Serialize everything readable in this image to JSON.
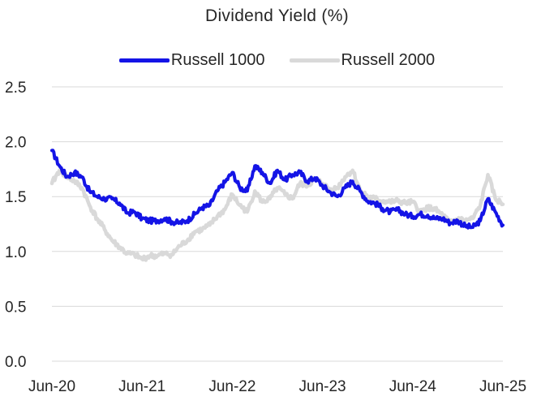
{
  "chart_data": {
    "type": "line",
    "title": "Dividend Yield (%)",
    "xlabel": "",
    "ylabel": "",
    "ylim": [
      0,
      2.5
    ],
    "yticks": [
      "0.0",
      "0.5",
      "1.0",
      "1.5",
      "2.0",
      "2.5"
    ],
    "xticks": [
      "Jun-20",
      "Jun-21",
      "Jun-22",
      "Jun-23",
      "Jun-24",
      "Jun-25"
    ],
    "grid": "horizontal",
    "legend": "top-center",
    "series": [
      {
        "name": "Russell 1000",
        "color": "#1414e6",
        "points": [
          [
            "2020-06",
            1.92
          ],
          [
            "2020-07",
            1.78
          ],
          [
            "2020-08",
            1.68
          ],
          [
            "2020-09",
            1.72
          ],
          [
            "2020-10",
            1.68
          ],
          [
            "2020-11",
            1.55
          ],
          [
            "2020-12",
            1.5
          ],
          [
            "2021-01",
            1.48
          ],
          [
            "2021-02",
            1.48
          ],
          [
            "2021-03",
            1.44
          ],
          [
            "2021-04",
            1.35
          ],
          [
            "2021-05",
            1.36
          ],
          [
            "2021-06",
            1.3
          ],
          [
            "2021-07",
            1.28
          ],
          [
            "2021-08",
            1.28
          ],
          [
            "2021-09",
            1.3
          ],
          [
            "2021-10",
            1.27
          ],
          [
            "2021-11",
            1.26
          ],
          [
            "2021-12",
            1.28
          ],
          [
            "2022-01",
            1.34
          ],
          [
            "2022-02",
            1.4
          ],
          [
            "2022-03",
            1.42
          ],
          [
            "2022-04",
            1.55
          ],
          [
            "2022-05",
            1.63
          ],
          [
            "2022-06",
            1.72
          ],
          [
            "2022-07",
            1.58
          ],
          [
            "2022-08",
            1.55
          ],
          [
            "2022-09",
            1.78
          ],
          [
            "2022-10",
            1.72
          ],
          [
            "2022-11",
            1.62
          ],
          [
            "2022-12",
            1.74
          ],
          [
            "2023-01",
            1.65
          ],
          [
            "2023-02",
            1.7
          ],
          [
            "2023-03",
            1.72
          ],
          [
            "2023-04",
            1.64
          ],
          [
            "2023-05",
            1.67
          ],
          [
            "2023-06",
            1.6
          ],
          [
            "2023-07",
            1.54
          ],
          [
            "2023-08",
            1.5
          ],
          [
            "2023-09",
            1.58
          ],
          [
            "2023-10",
            1.64
          ],
          [
            "2023-11",
            1.55
          ],
          [
            "2023-12",
            1.46
          ],
          [
            "2024-01",
            1.44
          ],
          [
            "2024-02",
            1.39
          ],
          [
            "2024-03",
            1.36
          ],
          [
            "2024-04",
            1.38
          ],
          [
            "2024-05",
            1.34
          ],
          [
            "2024-06",
            1.32
          ],
          [
            "2024-07",
            1.34
          ],
          [
            "2024-08",
            1.33
          ],
          [
            "2024-09",
            1.3
          ],
          [
            "2024-10",
            1.3
          ],
          [
            "2024-11",
            1.26
          ],
          [
            "2024-12",
            1.28
          ],
          [
            "2025-01",
            1.23
          ],
          [
            "2025-02",
            1.22
          ],
          [
            "2025-03",
            1.28
          ],
          [
            "2025-04",
            1.48
          ],
          [
            "2025-05",
            1.36
          ],
          [
            "2025-06",
            1.24
          ]
        ]
      },
      {
        "name": "Russell 2000",
        "color": "#d9d9d9",
        "points": [
          [
            "2020-06",
            1.62
          ],
          [
            "2020-07",
            1.74
          ],
          [
            "2020-08",
            1.68
          ],
          [
            "2020-09",
            1.64
          ],
          [
            "2020-10",
            1.58
          ],
          [
            "2020-11",
            1.42
          ],
          [
            "2020-12",
            1.3
          ],
          [
            "2021-01",
            1.2
          ],
          [
            "2021-02",
            1.1
          ],
          [
            "2021-03",
            1.04
          ],
          [
            "2021-04",
            0.98
          ],
          [
            "2021-05",
            0.97
          ],
          [
            "2021-06",
            0.93
          ],
          [
            "2021-07",
            0.96
          ],
          [
            "2021-08",
            0.96
          ],
          [
            "2021-09",
            0.98
          ],
          [
            "2021-10",
            0.97
          ],
          [
            "2021-11",
            1.05
          ],
          [
            "2021-12",
            1.1
          ],
          [
            "2022-01",
            1.18
          ],
          [
            "2022-02",
            1.2
          ],
          [
            "2022-03",
            1.24
          ],
          [
            "2022-04",
            1.32
          ],
          [
            "2022-05",
            1.38
          ],
          [
            "2022-06",
            1.52
          ],
          [
            "2022-07",
            1.42
          ],
          [
            "2022-08",
            1.36
          ],
          [
            "2022-09",
            1.55
          ],
          [
            "2022-10",
            1.45
          ],
          [
            "2022-11",
            1.48
          ],
          [
            "2022-12",
            1.58
          ],
          [
            "2023-01",
            1.52
          ],
          [
            "2023-02",
            1.48
          ],
          [
            "2023-03",
            1.62
          ],
          [
            "2023-04",
            1.6
          ],
          [
            "2023-05",
            1.66
          ],
          [
            "2023-06",
            1.62
          ],
          [
            "2023-07",
            1.56
          ],
          [
            "2023-08",
            1.58
          ],
          [
            "2023-09",
            1.68
          ],
          [
            "2023-10",
            1.74
          ],
          [
            "2023-11",
            1.56
          ],
          [
            "2023-12",
            1.5
          ],
          [
            "2024-01",
            1.48
          ],
          [
            "2024-02",
            1.46
          ],
          [
            "2024-03",
            1.45
          ],
          [
            "2024-04",
            1.46
          ],
          [
            "2024-05",
            1.44
          ],
          [
            "2024-06",
            1.45
          ],
          [
            "2024-07",
            1.36
          ],
          [
            "2024-08",
            1.4
          ],
          [
            "2024-09",
            1.38
          ],
          [
            "2024-10",
            1.33
          ],
          [
            "2024-11",
            1.26
          ],
          [
            "2024-12",
            1.3
          ],
          [
            "2025-01",
            1.28
          ],
          [
            "2025-02",
            1.3
          ],
          [
            "2025-03",
            1.42
          ],
          [
            "2025-04",
            1.7
          ],
          [
            "2025-05",
            1.48
          ],
          [
            "2025-06",
            1.43
          ]
        ]
      }
    ]
  }
}
